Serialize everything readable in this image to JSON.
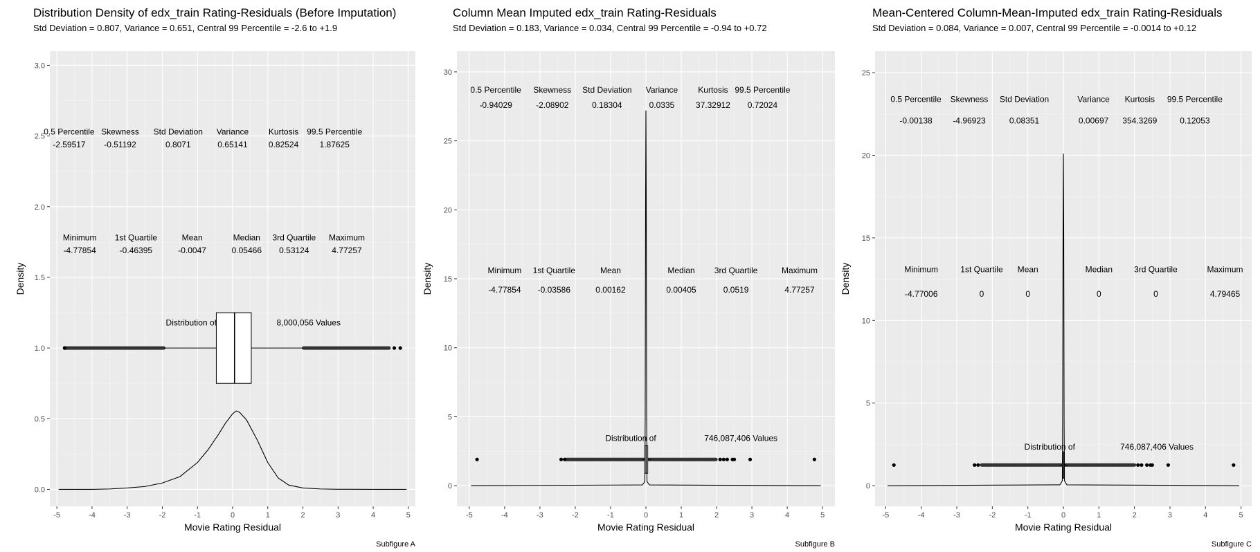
{
  "chart_data": [
    {
      "type": "density",
      "title": "Distribution Density of edx_train Rating-Residuals (Before Imputation)",
      "subtitle": "Std Deviation = 0.807, Variance = 0.651, Central 99 Percentile = -2.6 to +1.9",
      "xlabel": "Movie Rating Residual",
      "ylabel": "Density",
      "caption": "Subfigure A",
      "xlim": [
        -5.2,
        5.2
      ],
      "ylim": [
        -0.12,
        3.1
      ],
      "x_ticks": [
        -5,
        -4,
        -3,
        -2,
        -1,
        0,
        1,
        2,
        3,
        4,
        5
      ],
      "y_ticks": [
        0.0,
        0.5,
        1.0,
        1.5,
        2.0,
        2.5,
        3.0
      ],
      "y_tick_labels": [
        "0.0",
        "0.5",
        "1.0",
        "1.5",
        "2.0",
        "2.5",
        "3.0"
      ],
      "density_curve": {
        "x": [
          -4.95,
          -4,
          -3.5,
          -3,
          -2.5,
          -2,
          -1.5,
          -1,
          -0.7,
          -0.4,
          -0.2,
          0,
          0.1,
          0.2,
          0.4,
          0.7,
          1,
          1.3,
          1.6,
          2,
          2.5,
          3,
          4,
          4.95
        ],
        "y": [
          0.0,
          0.0,
          0.003,
          0.01,
          0.02,
          0.045,
          0.09,
          0.19,
          0.28,
          0.39,
          0.47,
          0.535,
          0.555,
          0.545,
          0.49,
          0.35,
          0.19,
          0.08,
          0.03,
          0.01,
          0.003,
          0.001,
          0.0,
          0.0
        ]
      },
      "boxplot": {
        "y": 1.0,
        "q1": -0.46395,
        "median": 0.05466,
        "q3": 0.53124,
        "box_height": 0.5,
        "whisker_low": -1.95,
        "whisker_high": 2.0,
        "outlier_bands": [
          [
            -4.78,
            -1.96
          ],
          [
            2.02,
            4.45
          ]
        ],
        "outliers": [
          -4.78,
          4.6,
          4.77
        ]
      },
      "box_annotation": {
        "left": "Distribution of",
        "right": "8,000,056  Values",
        "y": 1.18,
        "left_x": -1.9,
        "right_x": 1.25
      },
      "stats_rows": [
        {
          "y_label": 2.53,
          "y_value": 2.44,
          "x": [
            -4.65,
            -3.2,
            -1.55,
            0.0,
            1.45,
            2.9
          ],
          "labels": [
            "0.5 Percentile",
            "Skewness",
            "Std Deviation",
            "Variance",
            "Kurtosis",
            "99.5 Percentile"
          ],
          "values": [
            "-2.59517",
            "-0.51192",
            "0.8071",
            "0.65141",
            "0.82524",
            "1.87625"
          ]
        },
        {
          "y_label": 1.78,
          "y_value": 1.69,
          "x": [
            -4.35,
            -2.75,
            -1.15,
            0.4,
            1.75,
            3.25
          ],
          "labels": [
            "Minimum",
            "1st Quartile",
            "Mean",
            "Median",
            "3rd Quartile",
            "Maximum"
          ],
          "values": [
            "-4.77854",
            "-0.46395",
            "-0.0047",
            "0.05466",
            "0.53124",
            "4.77257"
          ]
        }
      ]
    },
    {
      "type": "density",
      "title": "Column Mean Imputed edx_train Rating-Residuals",
      "subtitle": "Std Deviation = 0.183, Variance = 0.034, Central 99 Percentile = -0.94 to +0.72",
      "xlabel": "Movie Rating Residual",
      "ylabel": "Density",
      "caption": "Subfigure B",
      "xlim": [
        -5.35,
        5.35
      ],
      "ylim": [
        -1.5,
        31.5
      ],
      "x_ticks": [
        -5,
        -4,
        -3,
        -2,
        -1,
        0,
        1,
        2,
        3,
        4,
        5
      ],
      "y_ticks": [
        0,
        5,
        10,
        15,
        20,
        25,
        30
      ],
      "y_tick_labels": [
        "0",
        "5",
        "10",
        "15",
        "20",
        "25",
        "30"
      ],
      "density_curve": {
        "x": [
          -4.95,
          -0.1,
          -0.03,
          -0.02,
          -0.01,
          0.0,
          0.01,
          0.02,
          0.03,
          0.1,
          4.95
        ],
        "y": [
          0,
          0.05,
          0.3,
          5,
          20,
          27.2,
          20,
          5,
          0.3,
          0.05,
          0
        ]
      },
      "boxplot": {
        "y": 1.9,
        "q1": -0.03586,
        "median": 0.00405,
        "q3": 0.0519,
        "box_height": 2.0,
        "whisker_low": -0.1,
        "whisker_high": 0.15,
        "outlier_bands": [
          [
            -2.25,
            1.98
          ]
        ],
        "outliers": [
          -4.78,
          -2.4,
          -2.3,
          2.1,
          2.2,
          2.3,
          2.45,
          2.5,
          2.95,
          4.77
        ]
      },
      "box_annotation": {
        "left": "Distribution of",
        "right": "746,087,406  Values",
        "y": 3.45,
        "left_x": -1.15,
        "right_x": 1.65
      },
      "stats_rows": [
        {
          "y_label": 28.7,
          "y_value": 27.6,
          "x": [
            -4.25,
            -2.65,
            -1.1,
            0.45,
            1.9,
            3.3
          ],
          "labels": [
            "0.5 Percentile",
            "Skewness",
            "Std Deviation",
            "Variance",
            "Kurtosis",
            "99.5 Percentile"
          ],
          "values": [
            "-0.94029",
            "-2.08902",
            "0.18304",
            "0.0335",
            "37.32912",
            "0.72024"
          ]
        },
        {
          "y_label": 15.6,
          "y_value": 14.2,
          "x": [
            -4.0,
            -2.6,
            -1.0,
            1.0,
            2.55,
            4.35
          ],
          "labels": [
            "Minimum",
            "1st Quartile",
            "Mean",
            "Median",
            "3rd Quartile",
            "Maximum"
          ],
          "values": [
            "-4.77854",
            "-0.03586",
            "0.00162",
            "0.00405",
            "0.0519",
            "4.77257"
          ]
        }
      ]
    },
    {
      "type": "density",
      "title": "Mean-Centered Column-Mean-Imputed edx_train Rating-Residuals",
      "subtitle": "Std Deviation = 0.084, Variance = 0.007, Central 99 Percentile = -0.0014 to +0.12",
      "xlabel": "Movie Rating Residual",
      "ylabel": "Density",
      "caption": "Subfigure C",
      "xlim": [
        -5.3,
        5.3
      ],
      "ylim": [
        -1.25,
        26.3
      ],
      "x_ticks": [
        -5,
        -4,
        -3,
        -2,
        -1,
        0,
        1,
        2,
        3,
        4,
        5
      ],
      "y_ticks": [
        0,
        5,
        10,
        15,
        20,
        25
      ],
      "y_tick_labels": [
        "0",
        "5",
        "10",
        "15",
        "20",
        "25"
      ],
      "density_curve": {
        "x": [
          -4.95,
          -0.1,
          -0.03,
          -0.02,
          -0.01,
          0.0,
          0.01,
          0.02,
          0.03,
          0.1,
          4.95
        ],
        "y": [
          0,
          0.05,
          0.3,
          4,
          15,
          20.1,
          15,
          4,
          0.3,
          0.05,
          0
        ]
      },
      "boxplot": {
        "y": 1.25,
        "q1": 0,
        "median": 0,
        "q3": 0,
        "box_height": 1.6,
        "whisker_low": -0.1,
        "whisker_high": 0.12,
        "outlier_bands": [
          [
            -2.3,
            2.0
          ]
        ],
        "outliers": [
          -4.77,
          -2.5,
          -2.4,
          2.1,
          2.2,
          2.35,
          2.45,
          2.5,
          2.95,
          4.79
        ]
      },
      "box_annotation": {
        "left": "Distribution of",
        "right": "746,087,406  Values",
        "y": 2.35,
        "left_x": -1.1,
        "right_x": 1.6
      },
      "stats_rows": [
        {
          "y_label": 23.4,
          "y_value": 22.1,
          "x": [
            -4.15,
            -2.65,
            -1.1,
            0.85,
            2.15,
            3.7
          ],
          "labels": [
            "0.5 Percentile",
            "Skewness",
            "Std Deviation",
            "Variance",
            "Kurtosis",
            "99.5 Percentile"
          ],
          "values": [
            "-0.00138",
            "-4.96923",
            "0.08351",
            "0.00697",
            "354.3269",
            "0.12053"
          ]
        },
        {
          "y_label": 13.1,
          "y_value": 11.6,
          "x": [
            -4.0,
            -2.3,
            -1.0,
            1.0,
            2.6,
            4.55
          ],
          "labels": [
            "Minimum",
            "1st Quartile",
            "Mean",
            "Median",
            "3rd Quartile",
            "Maximum"
          ],
          "values": [
            "-4.77006",
            "0",
            "0",
            "0",
            "0",
            "4.79465"
          ]
        }
      ]
    }
  ]
}
